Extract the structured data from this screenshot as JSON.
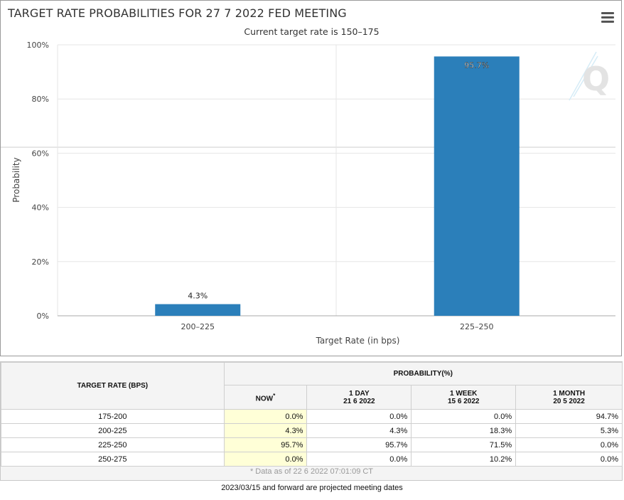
{
  "chart_data": {
    "type": "bar",
    "title": "TARGET RATE PROBABILITIES FOR 27 7 2022 FED MEETING",
    "subtitle": "Current target rate is 150–175",
    "xlabel": "Target Rate (in bps)",
    "ylabel": "Probability",
    "categories": [
      "200–225",
      "225–250"
    ],
    "values": [
      4.3,
      95.7
    ],
    "data_labels": [
      "4.3%",
      "95.7%"
    ],
    "ylim": [
      0,
      100
    ],
    "yticks": [
      "0%",
      "20%",
      "40%",
      "60%",
      "80%",
      "100%"
    ],
    "bar_color": "#2b7fba",
    "grid": true,
    "legend": false
  },
  "table": {
    "row_header": "TARGET RATE (BPS)",
    "group_header": "PROBABILITY(%)",
    "columns": [
      {
        "label": "NOW",
        "mark": "*",
        "date": ""
      },
      {
        "label": "1 DAY",
        "date": "21 6 2022"
      },
      {
        "label": "1 WEEK",
        "date": "15 6 2022"
      },
      {
        "label": "1 MONTH",
        "date": "20 5 2022"
      }
    ],
    "rows": [
      {
        "rate": "175-200",
        "values": [
          "0.0%",
          "0.0%",
          "0.0%",
          "94.7%"
        ]
      },
      {
        "rate": "200-225",
        "values": [
          "4.3%",
          "4.3%",
          "18.3%",
          "5.3%"
        ]
      },
      {
        "rate": "225-250",
        "values": [
          "95.7%",
          "95.7%",
          "71.5%",
          "0.0%"
        ]
      },
      {
        "rate": "250-275",
        "values": [
          "0.0%",
          "0.0%",
          "10.2%",
          "0.0%"
        ]
      }
    ],
    "footnote": "* Data as of 22 6 2022 07:01:09 CT"
  },
  "bottom_note": "2023/03/15 and forward are projected meeting dates",
  "icons": {
    "menu": "hamburger-menu-icon",
    "watermark": "q-logo"
  }
}
